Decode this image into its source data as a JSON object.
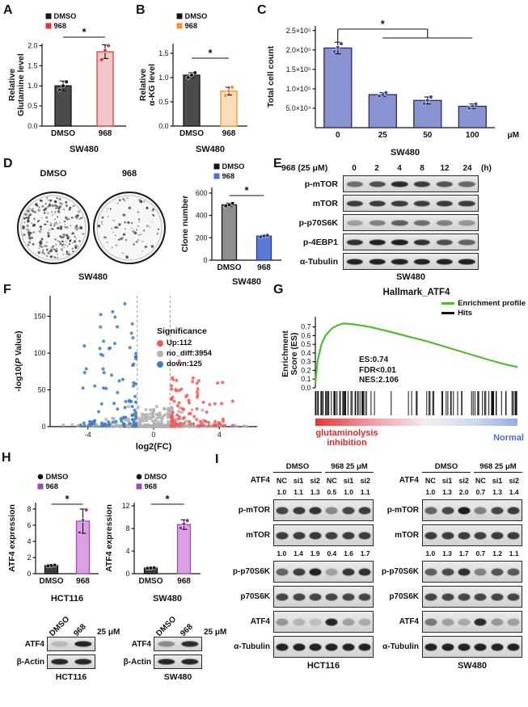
{
  "panels": {
    "A": {
      "letter": "A"
    },
    "B": {
      "letter": "B"
    },
    "C": {
      "letter": "C"
    },
    "D": {
      "letter": "D"
    },
    "E": {
      "letter": "E"
    },
    "F": {
      "letter": "F"
    },
    "G": {
      "letter": "G"
    },
    "H": {
      "letter": "H"
    },
    "I": {
      "letter": "I"
    }
  },
  "colony": {
    "conditions": [
      "DMSO",
      "968"
    ],
    "cell_line": "SW480",
    "dot_counts": [
      240,
      80
    ]
  },
  "blot_E": {
    "treatment": "968 (25 μM)",
    "timepoints": [
      "0",
      "2",
      "4",
      "8",
      "12",
      "24"
    ],
    "time_unit": "(h)",
    "cell_line": "SW480",
    "rows": [
      {
        "label": "p-mTOR",
        "bands": [
          0.55,
          0.7,
          0.88,
          0.8,
          0.68,
          0.58
        ]
      },
      {
        "label": "mTOR",
        "bands": [
          0.8,
          0.8,
          0.8,
          0.8,
          0.8,
          0.8
        ]
      },
      {
        "label": "p-p70S6K",
        "bands": [
          0.3,
          0.45,
          0.62,
          0.55,
          0.45,
          0.35
        ]
      },
      {
        "label": "p-4EBP1",
        "bands": [
          0.85,
          0.92,
          0.95,
          0.85,
          0.7,
          0.6
        ]
      },
      {
        "label": "α-Tubulin",
        "bands": [
          0.92,
          0.92,
          0.92,
          0.92,
          0.92,
          0.92
        ]
      }
    ]
  },
  "blot_H": {
    "dose": "25 μM",
    "groups": [
      {
        "cell_line": "HCT116",
        "lanes": [
          "DMSO",
          "968"
        ],
        "rows": [
          {
            "label": "ATF4",
            "bands": [
              0.18,
              0.92
            ]
          },
          {
            "label": "β-Actin",
            "bands": [
              0.9,
              0.9
            ]
          }
        ]
      },
      {
        "cell_line": "SW480",
        "lanes": [
          "DMSO",
          "968"
        ],
        "rows": [
          {
            "label": "ATF4",
            "bands": [
              0.4,
              0.88
            ]
          },
          {
            "label": "β-Actin",
            "bands": [
              0.9,
              0.9
            ]
          }
        ]
      }
    ]
  },
  "blot_I": {
    "groups": [
      {
        "cell_line": "HCT116",
        "header": [
          "DMSO",
          "968 25 μM"
        ],
        "sirna_label": "ATF4",
        "lanes": [
          "NC",
          "si1",
          "si2",
          "NC",
          "si1",
          "si2"
        ],
        "rows": [
          {
            "type": "quant",
            "values": [
              "1.0",
              "1.1",
              "1.3",
              "0.5",
              "1.0",
              "1.1"
            ]
          },
          {
            "type": "blot",
            "label": "p-mTOR",
            "bands": [
              0.75,
              0.8,
              0.85,
              0.42,
              0.75,
              0.8
            ]
          },
          {
            "type": "blot",
            "label": "mTOR",
            "bands": [
              0.8,
              0.8,
              0.82,
              0.78,
              0.8,
              0.8
            ]
          },
          {
            "type": "quant",
            "values": [
              "1.0",
              "1.4",
              "1.9",
              "0.4",
              "1.6",
              "1.7"
            ]
          },
          {
            "type": "blot",
            "label": "p-p70S6K",
            "bands": [
              0.6,
              0.78,
              0.92,
              0.3,
              0.82,
              0.85
            ]
          },
          {
            "type": "blot",
            "label": "p70S6K",
            "bands": [
              0.75,
              0.75,
              0.75,
              0.75,
              0.75,
              0.75
            ]
          },
          {
            "type": "blot",
            "label": "ATF4",
            "bands": [
              0.35,
              0.2,
              0.15,
              0.9,
              0.3,
              0.25
            ]
          },
          {
            "type": "blot",
            "label": "α-Tubulin",
            "bands": [
              0.92,
              0.92,
              0.92,
              0.92,
              0.92,
              0.92
            ]
          }
        ]
      },
      {
        "cell_line": "SW480",
        "header": [
          "DMSO",
          "968 25 μM"
        ],
        "sirna_label": "ATF4",
        "lanes": [
          "NC",
          "si1",
          "si2",
          "NC",
          "si1",
          "si2"
        ],
        "rows": [
          {
            "type": "quant",
            "values": [
              "1.0",
              "1.3",
              "2.0",
              "0.7",
              "1.3",
              "1.4"
            ]
          },
          {
            "type": "blot",
            "label": "p-mTOR",
            "bands": [
              0.6,
              0.75,
              0.95,
              0.45,
              0.75,
              0.8
            ]
          },
          {
            "type": "blot",
            "label": "mTOR",
            "bands": [
              0.8,
              0.8,
              0.8,
              0.78,
              0.8,
              0.8
            ]
          },
          {
            "type": "quant",
            "values": [
              "1.0",
              "1.3",
              "1.7",
              "0.7",
              "1.2",
              "1.1"
            ]
          },
          {
            "type": "blot",
            "label": "p-p70S6K",
            "bands": [
              0.62,
              0.72,
              0.85,
              0.45,
              0.68,
              0.65
            ]
          },
          {
            "type": "blot",
            "label": "p70S6K",
            "bands": [
              0.75,
              0.75,
              0.75,
              0.75,
              0.75,
              0.75
            ]
          },
          {
            "type": "blot",
            "label": "ATF4",
            "bands": [
              0.5,
              0.3,
              0.25,
              0.88,
              0.35,
              0.3
            ]
          },
          {
            "type": "blot",
            "label": "α-Tubulin",
            "bands": [
              0.92,
              0.92,
              0.92,
              0.92,
              0.92,
              0.92
            ]
          }
        ]
      }
    ]
  },
  "chart_data": [
    {
      "id": "A",
      "type": "bar",
      "ylabel": "Relative Glutamine level",
      "xlabel": "SW480",
      "categories": [
        "DMSO",
        "968"
      ],
      "values": [
        1.0,
        1.85
      ],
      "errors": [
        0.12,
        0.17
      ],
      "points": [
        [
          0.9,
          1.0,
          1.1
        ],
        [
          1.65,
          1.88,
          2.0
        ]
      ],
      "bar_fill": [
        "#4b4b4d",
        "#f0c6c8"
      ],
      "bar_edge": [
        "#141414",
        "#e03a3c"
      ],
      "point_color": [
        "#141414",
        "#e03434"
      ],
      "ylim": [
        0,
        2.05
      ],
      "yticks": [
        0,
        0.5,
        1,
        1.5,
        2
      ],
      "ytick_labels": [
        "0.0",
        "0.5",
        "1.0",
        "1.5",
        "2.0"
      ],
      "legend": [
        {
          "label": "DMSO",
          "color": "#141414",
          "marker": "square"
        },
        {
          "label": "968",
          "color": "#e03434",
          "marker": "square"
        }
      ],
      "sig": {
        "type": "pair",
        "from": 0,
        "to": 1,
        "label": "*"
      }
    },
    {
      "id": "B",
      "type": "bar",
      "ylabel": "Relative α-KG level",
      "xlabel": "SW480",
      "categories": [
        "DMSO",
        "968"
      ],
      "values": [
        1.05,
        0.72
      ],
      "errors": [
        0.05,
        0.08
      ],
      "points": [
        [
          1.0,
          1.05,
          1.1
        ],
        [
          0.63,
          0.72,
          0.8
        ]
      ],
      "bar_fill": [
        "#4b4b4d",
        "#f7ddba"
      ],
      "bar_edge": [
        "#141414",
        "#f59331"
      ],
      "point_color": [
        "#141414",
        "#f59331"
      ],
      "ylim": [
        0,
        1.7
      ],
      "yticks": [
        0,
        0.5,
        1,
        1.5
      ],
      "ytick_labels": [
        "0.0",
        "0.5",
        "1.0",
        "1.5"
      ],
      "legend": [
        {
          "label": "DMSO",
          "color": "#141414",
          "marker": "square"
        },
        {
          "label": "968",
          "color": "#f59331",
          "marker": "square"
        }
      ],
      "sig": {
        "type": "pair",
        "from": 0,
        "to": 1,
        "label": "*"
      }
    },
    {
      "id": "C",
      "type": "bar",
      "ylabel": "Total cell count",
      "xlabel": "SW480",
      "x_unit": "μM",
      "categories": [
        "0",
        "25",
        "50",
        "100"
      ],
      "values": [
        205000,
        85000,
        70000,
        55000
      ],
      "errors": [
        15000,
        5000,
        9000,
        6000
      ],
      "points": [
        [
          196000,
          206000,
          216000
        ],
        [
          81000,
          85000,
          90000
        ],
        [
          62000,
          70000,
          79000
        ],
        [
          50000,
          55000,
          61000
        ]
      ],
      "bar_fill": [
        "#8a93d2",
        "#8a93d2",
        "#8a93d2",
        "#8a93d2"
      ],
      "bar_edge": [
        "#2a2f55",
        "#2a2f55",
        "#2a2f55",
        "#2a2f55"
      ],
      "point_color": [
        "#3a47a8",
        "#3a47a8",
        "#3a47a8",
        "#3a47a8"
      ],
      "ylim": [
        0,
        262000
      ],
      "yticks": [
        50000,
        100000,
        150000,
        200000,
        250000
      ],
      "ytick_labels": [
        "5.0×10⁴",
        "1.0×10⁵",
        "1.5×10⁵",
        "2.0×10⁵",
        "2.5×10⁵"
      ],
      "sig": {
        "type": "group",
        "label": "*"
      }
    },
    {
      "id": "D",
      "type": "bar",
      "ylabel": "Clone number",
      "xlabel": "SW480",
      "categories": [
        "DMSO",
        "968"
      ],
      "values": [
        495,
        215
      ],
      "errors": [
        15,
        8
      ],
      "points": [
        [
          485,
          495,
          507
        ],
        [
          208,
          215,
          222
        ]
      ],
      "bar_fill": [
        "#8f8f8f",
        "#5b79d8"
      ],
      "bar_edge": [
        "#141414",
        "#24387c"
      ],
      "point_color": [
        "#141414",
        "#24387c"
      ],
      "ylim": [
        0,
        650
      ],
      "yticks": [
        0,
        200,
        400,
        600
      ],
      "ytick_labels": [
        "0",
        "200",
        "400",
        "600"
      ],
      "legend": [
        {
          "label": "DMSO",
          "color": "#141414",
          "marker": "square"
        },
        {
          "label": "968",
          "color": "#4e6cd2",
          "marker": "square"
        }
      ],
      "sig": {
        "type": "pair",
        "from": 0,
        "to": 1,
        "label": "*"
      }
    },
    {
      "id": "F",
      "type": "scatter",
      "xlabel": "log2(FC)",
      "ylabel": "-log10(P Value)",
      "xlim": [
        -6.3,
        6.3
      ],
      "xticks": [
        -4,
        0,
        4
      ],
      "ylim": [
        0,
        178
      ],
      "yticks": [
        0,
        50,
        100,
        150
      ],
      "threshold_x": [
        -1,
        1
      ],
      "legend_title": "Significance",
      "series": [
        {
          "name": "Up:112",
          "color": "#f2595c",
          "count": 112
        },
        {
          "name": "no_diff:3954",
          "color": "#b2b2b2",
          "count": 3954
        },
        {
          "name": "down:125",
          "color": "#3c7cc0",
          "count": 125
        }
      ]
    },
    {
      "id": "G",
      "type": "gsea",
      "title": "Hallmark_ATF4",
      "ylabel": "Enrichment Score (ES)",
      "yticks": [
        0,
        0.1,
        0.2,
        0.3,
        0.4,
        0.5,
        0.6,
        0.7
      ],
      "ytick_labels": [
        "0.0",
        "0.1",
        "0.2",
        "0.3",
        "0.4",
        "0.5",
        "0.6",
        "0.7"
      ],
      "stats": [
        "ES:0.74",
        "FDR<0.01",
        "NES:2.106"
      ],
      "legend": [
        {
          "label": "Enrichment profile",
          "color": "#55bb33"
        },
        {
          "label": "Hits",
          "color": "#141414"
        }
      ],
      "curve": [
        [
          0,
          0.04
        ],
        [
          0.01,
          0.3
        ],
        [
          0.03,
          0.5
        ],
        [
          0.05,
          0.6
        ],
        [
          0.08,
          0.68
        ],
        [
          0.11,
          0.72
        ],
        [
          0.14,
          0.74
        ],
        [
          0.19,
          0.73
        ],
        [
          0.27,
          0.7
        ],
        [
          0.36,
          0.65
        ],
        [
          0.46,
          0.59
        ],
        [
          0.56,
          0.53
        ],
        [
          0.66,
          0.46
        ],
        [
          0.76,
          0.39
        ],
        [
          0.86,
          0.32
        ],
        [
          0.94,
          0.27
        ],
        [
          1,
          0.24
        ]
      ],
      "hit_count": 110,
      "footer_left": {
        "text": "glutaminolysis inhibition",
        "color": "#e8262a"
      },
      "footer_right": {
        "text": "Normal",
        "color": "#4d6cd0"
      }
    },
    {
      "id": "H1",
      "type": "bar",
      "ylabel": "ATF4 expression",
      "xlabel": "HCT116",
      "categories": [
        "DMSO",
        "968"
      ],
      "values": [
        1.0,
        6.5
      ],
      "errors": [
        0.15,
        1.5
      ],
      "points": [
        [
          0.95,
          1.0,
          1.05
        ],
        [
          5.1,
          6.6,
          7.9
        ]
      ],
      "bar_fill": [
        "#3c3c3e",
        "#d9a0e2"
      ],
      "bar_edge": [
        "#141414",
        "#a44cb6"
      ],
      "point_color": [
        "#141414",
        "#8e2fa3"
      ],
      "ylim": [
        0,
        8.8
      ],
      "yticks": [
        0,
        2,
        4,
        6,
        8
      ],
      "ytick_labels": [
        "0",
        "2",
        "4",
        "6",
        "8"
      ],
      "legend": [
        {
          "label": "DMSO",
          "color": "#141414",
          "marker": "circle"
        },
        {
          "label": "968",
          "color": "#9b4fb0",
          "marker": "square"
        }
      ],
      "sig": {
        "type": "pair",
        "from": 0,
        "to": 1,
        "label": "*"
      }
    },
    {
      "id": "H2",
      "type": "bar",
      "ylabel": "ATF4 expression",
      "xlabel": "SW480",
      "categories": [
        "DMSO",
        "968"
      ],
      "values": [
        1.0,
        8.7
      ],
      "errors": [
        0.15,
        0.85
      ],
      "points": [
        [
          0.95,
          1.0,
          1.05
        ],
        [
          8.1,
          8.8,
          9.4
        ]
      ],
      "bar_fill": [
        "#3c3c3e",
        "#d9a0e2"
      ],
      "bar_edge": [
        "#141414",
        "#a44cb6"
      ],
      "point_color": [
        "#141414",
        "#8e2fa3"
      ],
      "ylim": [
        0,
        12.6
      ],
      "yticks": [
        0,
        4,
        8,
        12
      ],
      "ytick_labels": [
        "0",
        "4",
        "8",
        "12"
      ],
      "legend": [
        {
          "label": "DMSO",
          "color": "#141414",
          "marker": "circle"
        },
        {
          "label": "968",
          "color": "#9b4fb0",
          "marker": "square"
        }
      ],
      "sig": {
        "type": "pair",
        "from": 0,
        "to": 1,
        "label": "*"
      }
    }
  ]
}
